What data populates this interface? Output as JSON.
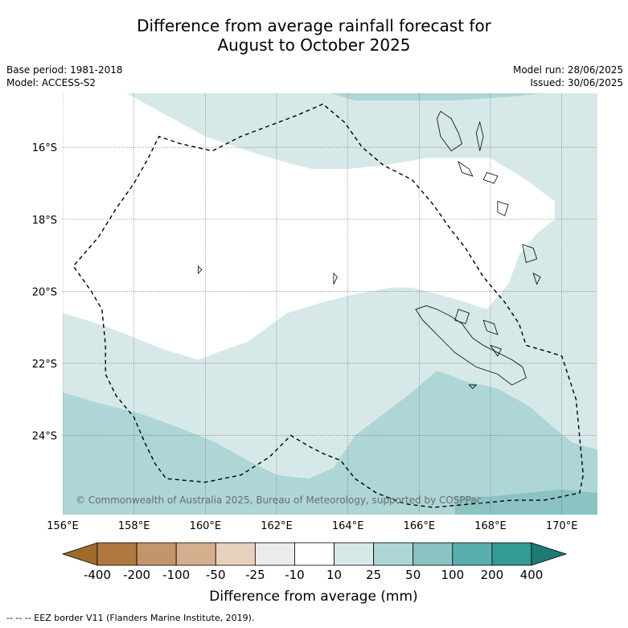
{
  "title": {
    "line1": "Difference from average rainfall forecast for",
    "line2": "August to October 2025"
  },
  "meta": {
    "base_period": "Base period: 1981-2018",
    "model": "Model: ACCESS-S2",
    "model_run": "Model run: 28/06/2025",
    "issued": "Issued: 30/06/2025"
  },
  "map": {
    "lon_range": [
      156,
      171
    ],
    "lat_range": [
      -26.2,
      -14.5
    ],
    "lon_ticks": [
      {
        "value": 156,
        "label": "156°E"
      },
      {
        "value": 158,
        "label": "158°E"
      },
      {
        "value": 160,
        "label": "160°E"
      },
      {
        "value": 162,
        "label": "162°E"
      },
      {
        "value": 164,
        "label": "164°E"
      },
      {
        "value": 166,
        "label": "166°E"
      },
      {
        "value": 168,
        "label": "168°E"
      },
      {
        "value": 170,
        "label": "170°E"
      }
    ],
    "lat_ticks": [
      {
        "value": -16,
        "label": "16°S"
      },
      {
        "value": -18,
        "label": "18°S"
      },
      {
        "value": -20,
        "label": "20°S"
      },
      {
        "value": -22,
        "label": "22°S"
      },
      {
        "value": -24,
        "label": "24°S"
      }
    ],
    "grid": true,
    "copyright": "© Commonwealth of Australia 2025, Bureau of Meteorology, supported by COSPPac",
    "eez_border": [
      [
        163.3,
        -14.8
      ],
      [
        162.6,
        -15.1
      ],
      [
        161.8,
        -15.4
      ],
      [
        161.0,
        -15.7
      ],
      [
        160.2,
        -16.1
      ],
      [
        159.3,
        -15.9
      ],
      [
        158.7,
        -15.7
      ],
      [
        158.4,
        -16.3
      ],
      [
        158.0,
        -17.0
      ],
      [
        157.5,
        -17.7
      ],
      [
        157.0,
        -18.5
      ],
      [
        156.3,
        -19.3
      ],
      [
        156.8,
        -20.0
      ],
      [
        157.1,
        -20.5
      ],
      [
        157.2,
        -21.5
      ],
      [
        157.2,
        -22.3
      ],
      [
        157.5,
        -22.9
      ],
      [
        158.0,
        -23.5
      ],
      [
        158.3,
        -24.2
      ],
      [
        158.6,
        -24.8
      ],
      [
        158.9,
        -25.2
      ],
      [
        160.0,
        -25.3
      ],
      [
        161.0,
        -25.1
      ],
      [
        161.8,
        -24.6
      ],
      [
        162.4,
        -24.0
      ],
      [
        162.9,
        -24.3
      ],
      [
        163.3,
        -24.5
      ],
      [
        163.8,
        -24.7
      ],
      [
        164.2,
        -25.2
      ],
      [
        164.8,
        -25.6
      ],
      [
        165.6,
        -25.9
      ],
      [
        166.4,
        -26.0
      ],
      [
        167.5,
        -25.9
      ],
      [
        168.6,
        -25.8
      ],
      [
        169.5,
        -25.8
      ],
      [
        170.5,
        -25.6
      ],
      [
        170.6,
        -25.1
      ],
      [
        170.4,
        -23.0
      ],
      [
        170.0,
        -21.8
      ],
      [
        169.7,
        -21.7
      ],
      [
        169.0,
        -21.5
      ],
      [
        168.8,
        -20.9
      ],
      [
        168.4,
        -20.3
      ],
      [
        167.8,
        -19.6
      ],
      [
        167.3,
        -18.8
      ],
      [
        166.9,
        -18.3
      ],
      [
        166.4,
        -17.6
      ],
      [
        165.8,
        -16.9
      ],
      [
        165.0,
        -16.5
      ],
      [
        164.4,
        -16.0
      ],
      [
        163.9,
        -15.3
      ],
      [
        163.3,
        -14.8
      ]
    ],
    "zones": [
      {
        "category": "10 to 25",
        "color": "#d6e9e8",
        "polygon": [
          [
            156,
            -14.5
          ],
          [
            171,
            -14.5
          ],
          [
            171,
            -26.2
          ],
          [
            156,
            -26.2
          ]
        ]
      },
      {
        "category": "-10 to 10",
        "color": "#ffffff",
        "polygon": [
          [
            157.8,
            -14.5
          ],
          [
            158.7,
            -15.0
          ],
          [
            160.0,
            -15.7
          ],
          [
            161.2,
            -16.1
          ],
          [
            162.2,
            -16.4
          ],
          [
            163.0,
            -16.6
          ],
          [
            164.0,
            -16.6
          ],
          [
            165.0,
            -16.5
          ],
          [
            166.2,
            -16.3
          ],
          [
            167.2,
            -16.3
          ],
          [
            168.0,
            -16.3
          ],
          [
            169.0,
            -16.9
          ],
          [
            169.8,
            -17.5
          ],
          [
            169.8,
            -18.0
          ],
          [
            169.3,
            -18.4
          ],
          [
            168.8,
            -19.0
          ],
          [
            168.5,
            -19.8
          ],
          [
            167.9,
            -20.5
          ],
          [
            167.3,
            -20.3
          ],
          [
            166.6,
            -20.1
          ],
          [
            165.8,
            -19.9
          ],
          [
            165.2,
            -19.9
          ],
          [
            164.1,
            -20.1
          ],
          [
            163.3,
            -20.3
          ],
          [
            162.3,
            -20.6
          ],
          [
            161.6,
            -21.1
          ],
          [
            161.2,
            -21.4
          ],
          [
            160.6,
            -21.6
          ],
          [
            159.8,
            -21.9
          ],
          [
            158.8,
            -21.6
          ],
          [
            157.8,
            -21.2
          ],
          [
            157.0,
            -20.9
          ],
          [
            156.0,
            -20.6
          ],
          [
            156.0,
            -14.5
          ]
        ]
      },
      {
        "category": "25 to 50",
        "color": "#aed6d6",
        "polygon": [
          [
            156.0,
            -22.8
          ],
          [
            157.0,
            -23.1
          ],
          [
            158.2,
            -23.4
          ],
          [
            159.3,
            -23.8
          ],
          [
            160.3,
            -24.2
          ],
          [
            161.2,
            -24.7
          ],
          [
            162.0,
            -25.1
          ],
          [
            162.9,
            -25.2
          ],
          [
            163.6,
            -24.9
          ],
          [
            164.2,
            -24.0
          ],
          [
            165.0,
            -23.4
          ],
          [
            165.8,
            -22.8
          ],
          [
            166.5,
            -22.2
          ],
          [
            167.3,
            -22.5
          ],
          [
            168.2,
            -22.7
          ],
          [
            169.1,
            -23.2
          ],
          [
            169.8,
            -23.8
          ],
          [
            170.3,
            -24.2
          ],
          [
            171.0,
            -24.4
          ],
          [
            171.0,
            -26.2
          ],
          [
            156.0,
            -26.2
          ]
        ]
      },
      {
        "category": "25 to 50",
        "color": "#aed6d6",
        "polygon": [
          [
            163.5,
            -14.5
          ],
          [
            169.5,
            -14.5
          ],
          [
            168.5,
            -14.6
          ],
          [
            167.0,
            -14.7
          ],
          [
            165.5,
            -14.7
          ],
          [
            164.2,
            -14.7
          ]
        ]
      },
      {
        "category": "50 to 100",
        "color": "#8bc3c3",
        "polygon": [
          [
            167.0,
            -25.7
          ],
          [
            168.0,
            -25.7
          ],
          [
            169.0,
            -25.6
          ],
          [
            170.0,
            -25.5
          ],
          [
            171.0,
            -25.6
          ],
          [
            171.0,
            -26.2
          ],
          [
            167.0,
            -26.2
          ]
        ]
      }
    ],
    "land": [
      [
        [
          166.5,
          -20.5
        ],
        [
          166.9,
          -20.7
        ],
        [
          167.2,
          -20.9
        ],
        [
          167.5,
          -21.3
        ],
        [
          167.8,
          -21.5
        ],
        [
          168.2,
          -21.7
        ],
        [
          168.6,
          -21.9
        ],
        [
          168.9,
          -22.1
        ],
        [
          169.0,
          -22.4
        ],
        [
          168.6,
          -22.6
        ],
        [
          168.2,
          -22.3
        ],
        [
          167.6,
          -22.1
        ],
        [
          167.0,
          -21.7
        ],
        [
          166.5,
          -21.2
        ],
        [
          166.1,
          -20.8
        ],
        [
          165.9,
          -20.5
        ],
        [
          166.2,
          -20.4
        ]
      ],
      [
        [
          166.6,
          -15.0
        ],
        [
          166.9,
          -15.2
        ],
        [
          167.1,
          -15.6
        ],
        [
          167.2,
          -15.9
        ],
        [
          166.9,
          -16.1
        ],
        [
          166.6,
          -15.7
        ],
        [
          166.5,
          -15.2
        ]
      ],
      [
        [
          167.7,
          -15.3
        ],
        [
          167.8,
          -15.7
        ],
        [
          167.7,
          -16.1
        ],
        [
          167.6,
          -15.6
        ]
      ],
      [
        [
          167.1,
          -16.4
        ],
        [
          167.4,
          -16.6
        ],
        [
          167.5,
          -16.8
        ],
        [
          167.2,
          -16.7
        ]
      ],
      [
        [
          167.9,
          -16.7
        ],
        [
          168.2,
          -16.8
        ],
        [
          168.1,
          -17.0
        ],
        [
          167.8,
          -16.9
        ]
      ],
      [
        [
          168.2,
          -17.5
        ],
        [
          168.5,
          -17.6
        ],
        [
          168.4,
          -17.9
        ],
        [
          168.2,
          -17.8
        ]
      ],
      [
        [
          168.9,
          -18.7
        ],
        [
          169.2,
          -18.8
        ],
        [
          169.3,
          -19.1
        ],
        [
          169.0,
          -19.2
        ]
      ],
      [
        [
          169.2,
          -19.5
        ],
        [
          169.4,
          -19.6
        ],
        [
          169.3,
          -19.8
        ]
      ],
      [
        [
          167.1,
          -20.5
        ],
        [
          167.4,
          -20.6
        ],
        [
          167.3,
          -20.9
        ],
        [
          167.0,
          -20.8
        ]
      ],
      [
        [
          167.8,
          -20.8
        ],
        [
          168.1,
          -20.9
        ],
        [
          168.2,
          -21.2
        ],
        [
          167.9,
          -21.1
        ]
      ],
      [
        [
          168.0,
          -21.5
        ],
        [
          168.3,
          -21.6
        ],
        [
          168.2,
          -21.8
        ]
      ],
      [
        [
          167.4,
          -22.6
        ],
        [
          167.6,
          -22.6
        ],
        [
          167.5,
          -22.7
        ]
      ],
      [
        [
          159.8,
          -19.3
        ],
        [
          159.9,
          -19.4
        ],
        [
          159.8,
          -19.5
        ]
      ],
      [
        [
          163.6,
          -19.5
        ],
        [
          163.7,
          -19.6
        ],
        [
          163.6,
          -19.8
        ]
      ]
    ]
  },
  "colorbar": {
    "colors": [
      "#a06a2c",
      "#b07840",
      "#c4946a",
      "#d4b08f",
      "#e6d2bc",
      "#ebebea",
      "#ffffff",
      "#d6e9e8",
      "#aed6d6",
      "#8bc3c3",
      "#5aaeae",
      "#349a94",
      "#1f7a74"
    ],
    "labels": [
      "-400",
      "-200",
      "-100",
      "-50",
      "-25",
      "-10",
      "10",
      "25",
      "50",
      "100",
      "200",
      "400"
    ],
    "xlabel": "Difference from average (mm)"
  },
  "footnote": "--  --  -- EEZ border V11 (Flanders Marine Institute, 2019)."
}
